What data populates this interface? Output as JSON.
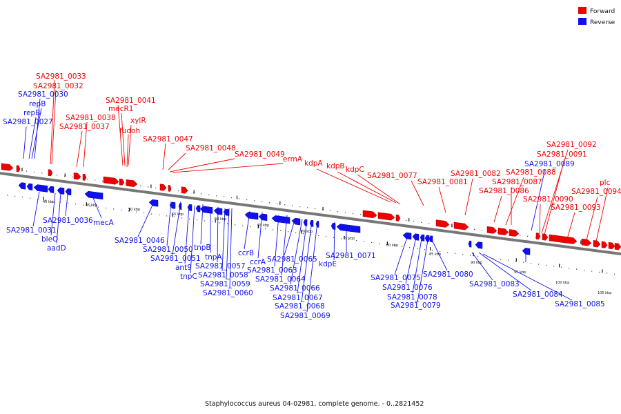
{
  "legend": [
    {
      "label": "Forward",
      "color": "#ee0000"
    },
    {
      "label": "Reverse",
      "color": "#1010ee"
    }
  ],
  "caption": "Staphylococcus aureus 04-02981, complete genome. - 0..2821452",
  "colors": {
    "forward": "#ee0000",
    "reverse": "#1010ee",
    "axis": "#777777",
    "ticks": "#111111"
  },
  "scale": {
    "unit": "kbp",
    "labels": [
      "40 kbp",
      "45 kbp",
      "50 kbp",
      "55 kbp",
      "60 kbp",
      "65 kbp",
      "70 kbp",
      "75 kbp",
      "80 kbp",
      "85 kbp",
      "90 kbp",
      "95 kbp",
      "100 kbp",
      "105 kbp"
    ]
  },
  "forward_labels": [
    "SA2981_0033",
    "SA2981_0032",
    "SA2981_0041",
    "mecR1",
    "xylR",
    "fudoh",
    "SA2981_0038",
    "SA2981_0037",
    "SA2981_0047",
    "SA2981_0048",
    "SA2981_0049",
    "ermA",
    "kdpA",
    "kdpB",
    "kdpC",
    "SA2981_0077",
    "SA2981_0081",
    "SA2981_0082",
    "SA2981_0088",
    "SA2981_0087",
    "SA2981_0086",
    "SA2981_0092",
    "SA2981_0091",
    "SA2981_0090",
    "SA2981_0094",
    "SA2981_0093",
    "plc"
  ],
  "reverse_labels": [
    "SA2981_0030",
    "repB",
    "repB",
    "SA2981_0027",
    "SA2981_0031",
    "SA2981_0036",
    "bleO",
    "aadD",
    "mecA",
    "SA2981_0046",
    "SA2981_0050",
    "SA2981_0051",
    "ant9",
    "tnpC",
    "tnpB",
    "tnpA",
    "SA2981_0057",
    "SA2981_0058",
    "SA2981_0059",
    "SA2981_0060",
    "ccrB",
    "ccrA",
    "SA2981_0065",
    "SA2981_0063",
    "SA2981_0064",
    "SA2981_0066",
    "SA2981_0067",
    "SA2981_0068",
    "SA2981_0069",
    "kdpE",
    "SA2981_0071",
    "SA2981_0089",
    "SA2981_0075",
    "SA2981_0076",
    "SA2981_0078",
    "SA2981_0079",
    "SA2981_0080",
    "SA2981_0083",
    "SA2981_0084",
    "SA2981_0085"
  ]
}
